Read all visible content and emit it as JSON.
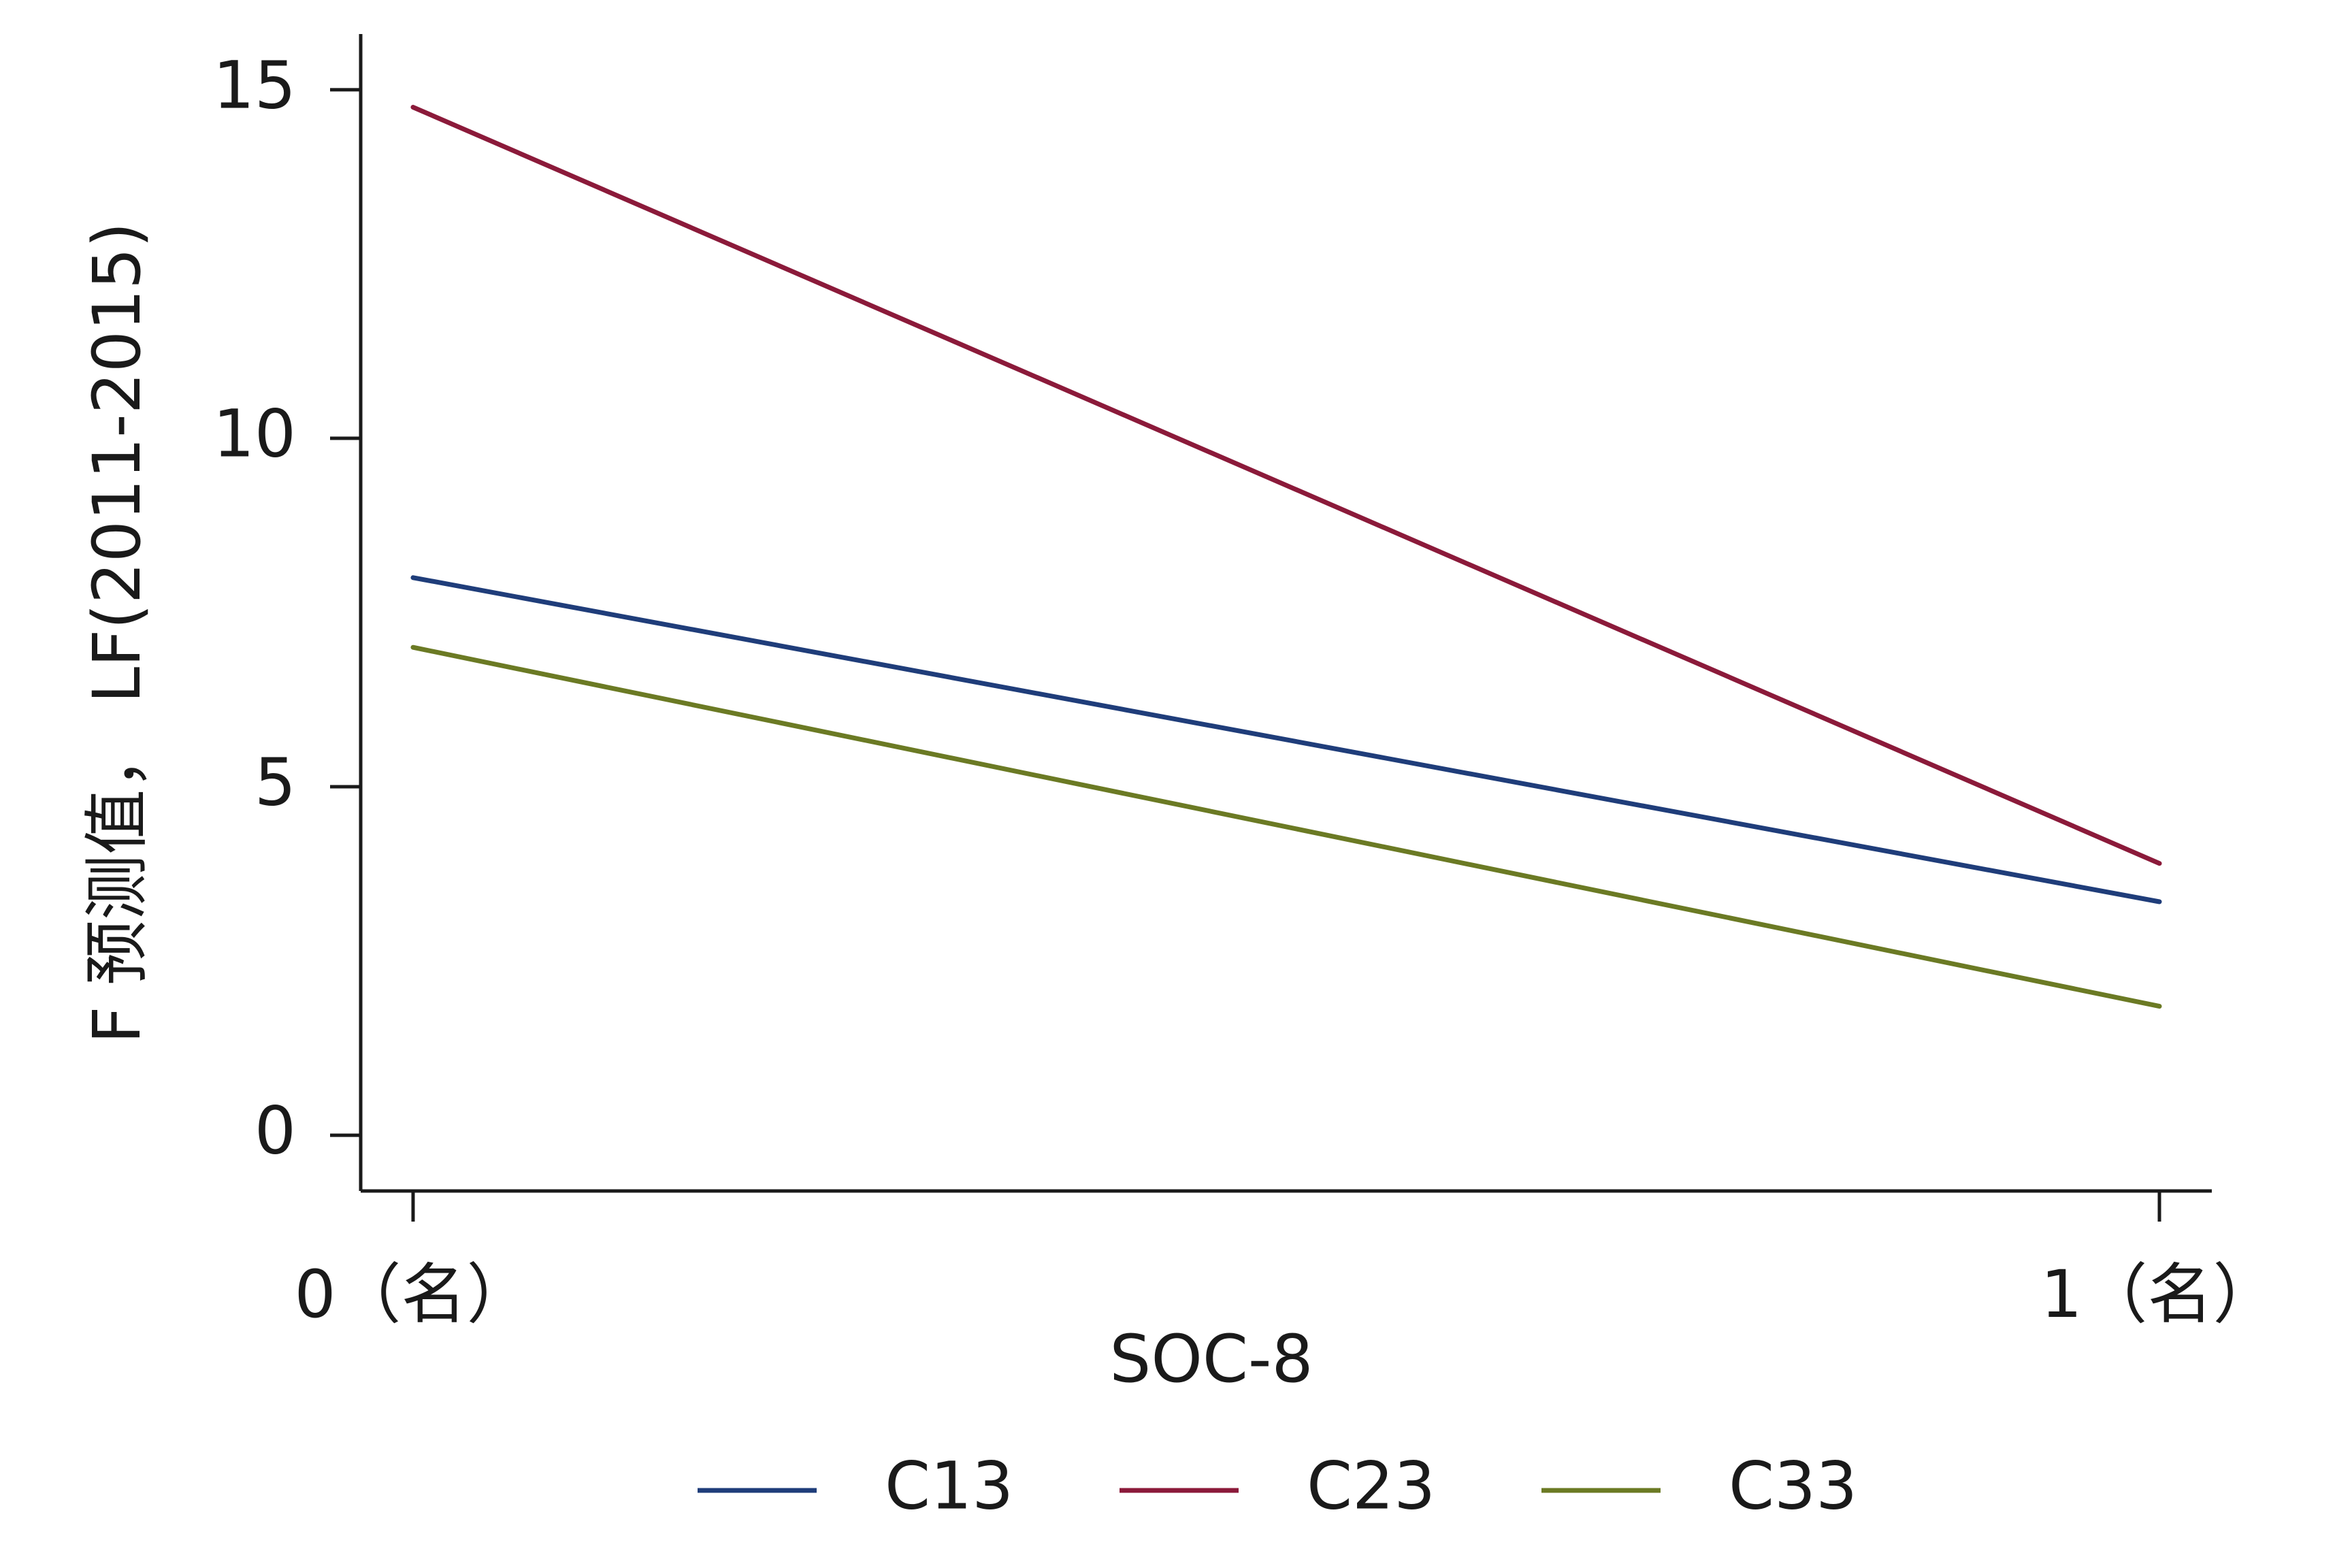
{
  "chart_data": {
    "type": "line",
    "title": "",
    "xlabel": "SOC-8",
    "ylabel": "F 预测值， LF(2011-2015)",
    "x_categories": [
      "0（名）",
      "1（名）"
    ],
    "x": [
      0,
      1
    ],
    "ylim": [
      -0.8,
      15.8
    ],
    "xlim": [
      -0.03,
      1.03
    ],
    "yticks": [
      0,
      5,
      10,
      15
    ],
    "grid": false,
    "legend_position": "bottom",
    "series": [
      {
        "name": "C13",
        "color": "#1f3d7a",
        "values": [
          8.0,
          3.35
        ]
      },
      {
        "name": "C23",
        "color": "#8b1a3a",
        "values": [
          14.75,
          3.9
        ]
      },
      {
        "name": "C33",
        "color": "#6b7a24",
        "values": [
          7.0,
          1.85
        ]
      }
    ]
  }
}
